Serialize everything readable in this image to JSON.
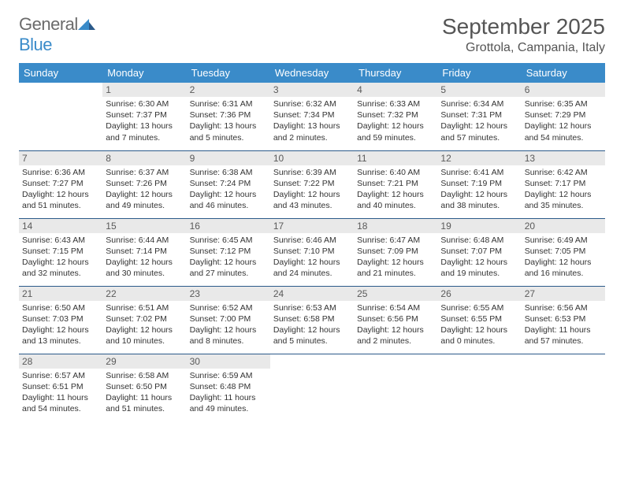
{
  "brand": {
    "name_gray": "General",
    "name_blue": "Blue",
    "icon_color": "#3a8bc9"
  },
  "title": "September 2025",
  "location": "Grottola, Campania, Italy",
  "colors": {
    "header_bg": "#3a8bc9",
    "header_text": "#ffffff",
    "daynum_bg": "#e9e9e9",
    "daynum_text": "#5a5a5a",
    "cell_border": "#2b5a8a",
    "body_text": "#333333",
    "title_text": "#555555"
  },
  "day_names": [
    "Sunday",
    "Monday",
    "Tuesday",
    "Wednesday",
    "Thursday",
    "Friday",
    "Saturday"
  ],
  "weeks": [
    [
      {
        "n": "",
        "sr": "",
        "ss": "",
        "dl": ""
      },
      {
        "n": "1",
        "sr": "Sunrise: 6:30 AM",
        "ss": "Sunset: 7:37 PM",
        "dl": "Daylight: 13 hours and 7 minutes."
      },
      {
        "n": "2",
        "sr": "Sunrise: 6:31 AM",
        "ss": "Sunset: 7:36 PM",
        "dl": "Daylight: 13 hours and 5 minutes."
      },
      {
        "n": "3",
        "sr": "Sunrise: 6:32 AM",
        "ss": "Sunset: 7:34 PM",
        "dl": "Daylight: 13 hours and 2 minutes."
      },
      {
        "n": "4",
        "sr": "Sunrise: 6:33 AM",
        "ss": "Sunset: 7:32 PM",
        "dl": "Daylight: 12 hours and 59 minutes."
      },
      {
        "n": "5",
        "sr": "Sunrise: 6:34 AM",
        "ss": "Sunset: 7:31 PM",
        "dl": "Daylight: 12 hours and 57 minutes."
      },
      {
        "n": "6",
        "sr": "Sunrise: 6:35 AM",
        "ss": "Sunset: 7:29 PM",
        "dl": "Daylight: 12 hours and 54 minutes."
      }
    ],
    [
      {
        "n": "7",
        "sr": "Sunrise: 6:36 AM",
        "ss": "Sunset: 7:27 PM",
        "dl": "Daylight: 12 hours and 51 minutes."
      },
      {
        "n": "8",
        "sr": "Sunrise: 6:37 AM",
        "ss": "Sunset: 7:26 PM",
        "dl": "Daylight: 12 hours and 49 minutes."
      },
      {
        "n": "9",
        "sr": "Sunrise: 6:38 AM",
        "ss": "Sunset: 7:24 PM",
        "dl": "Daylight: 12 hours and 46 minutes."
      },
      {
        "n": "10",
        "sr": "Sunrise: 6:39 AM",
        "ss": "Sunset: 7:22 PM",
        "dl": "Daylight: 12 hours and 43 minutes."
      },
      {
        "n": "11",
        "sr": "Sunrise: 6:40 AM",
        "ss": "Sunset: 7:21 PM",
        "dl": "Daylight: 12 hours and 40 minutes."
      },
      {
        "n": "12",
        "sr": "Sunrise: 6:41 AM",
        "ss": "Sunset: 7:19 PM",
        "dl": "Daylight: 12 hours and 38 minutes."
      },
      {
        "n": "13",
        "sr": "Sunrise: 6:42 AM",
        "ss": "Sunset: 7:17 PM",
        "dl": "Daylight: 12 hours and 35 minutes."
      }
    ],
    [
      {
        "n": "14",
        "sr": "Sunrise: 6:43 AM",
        "ss": "Sunset: 7:15 PM",
        "dl": "Daylight: 12 hours and 32 minutes."
      },
      {
        "n": "15",
        "sr": "Sunrise: 6:44 AM",
        "ss": "Sunset: 7:14 PM",
        "dl": "Daylight: 12 hours and 30 minutes."
      },
      {
        "n": "16",
        "sr": "Sunrise: 6:45 AM",
        "ss": "Sunset: 7:12 PM",
        "dl": "Daylight: 12 hours and 27 minutes."
      },
      {
        "n": "17",
        "sr": "Sunrise: 6:46 AM",
        "ss": "Sunset: 7:10 PM",
        "dl": "Daylight: 12 hours and 24 minutes."
      },
      {
        "n": "18",
        "sr": "Sunrise: 6:47 AM",
        "ss": "Sunset: 7:09 PM",
        "dl": "Daylight: 12 hours and 21 minutes."
      },
      {
        "n": "19",
        "sr": "Sunrise: 6:48 AM",
        "ss": "Sunset: 7:07 PM",
        "dl": "Daylight: 12 hours and 19 minutes."
      },
      {
        "n": "20",
        "sr": "Sunrise: 6:49 AM",
        "ss": "Sunset: 7:05 PM",
        "dl": "Daylight: 12 hours and 16 minutes."
      }
    ],
    [
      {
        "n": "21",
        "sr": "Sunrise: 6:50 AM",
        "ss": "Sunset: 7:03 PM",
        "dl": "Daylight: 12 hours and 13 minutes."
      },
      {
        "n": "22",
        "sr": "Sunrise: 6:51 AM",
        "ss": "Sunset: 7:02 PM",
        "dl": "Daylight: 12 hours and 10 minutes."
      },
      {
        "n": "23",
        "sr": "Sunrise: 6:52 AM",
        "ss": "Sunset: 7:00 PM",
        "dl": "Daylight: 12 hours and 8 minutes."
      },
      {
        "n": "24",
        "sr": "Sunrise: 6:53 AM",
        "ss": "Sunset: 6:58 PM",
        "dl": "Daylight: 12 hours and 5 minutes."
      },
      {
        "n": "25",
        "sr": "Sunrise: 6:54 AM",
        "ss": "Sunset: 6:56 PM",
        "dl": "Daylight: 12 hours and 2 minutes."
      },
      {
        "n": "26",
        "sr": "Sunrise: 6:55 AM",
        "ss": "Sunset: 6:55 PM",
        "dl": "Daylight: 12 hours and 0 minutes."
      },
      {
        "n": "27",
        "sr": "Sunrise: 6:56 AM",
        "ss": "Sunset: 6:53 PM",
        "dl": "Daylight: 11 hours and 57 minutes."
      }
    ],
    [
      {
        "n": "28",
        "sr": "Sunrise: 6:57 AM",
        "ss": "Sunset: 6:51 PM",
        "dl": "Daylight: 11 hours and 54 minutes."
      },
      {
        "n": "29",
        "sr": "Sunrise: 6:58 AM",
        "ss": "Sunset: 6:50 PM",
        "dl": "Daylight: 11 hours and 51 minutes."
      },
      {
        "n": "30",
        "sr": "Sunrise: 6:59 AM",
        "ss": "Sunset: 6:48 PM",
        "dl": "Daylight: 11 hours and 49 minutes."
      },
      {
        "n": "",
        "sr": "",
        "ss": "",
        "dl": ""
      },
      {
        "n": "",
        "sr": "",
        "ss": "",
        "dl": ""
      },
      {
        "n": "",
        "sr": "",
        "ss": "",
        "dl": ""
      },
      {
        "n": "",
        "sr": "",
        "ss": "",
        "dl": ""
      }
    ]
  ]
}
